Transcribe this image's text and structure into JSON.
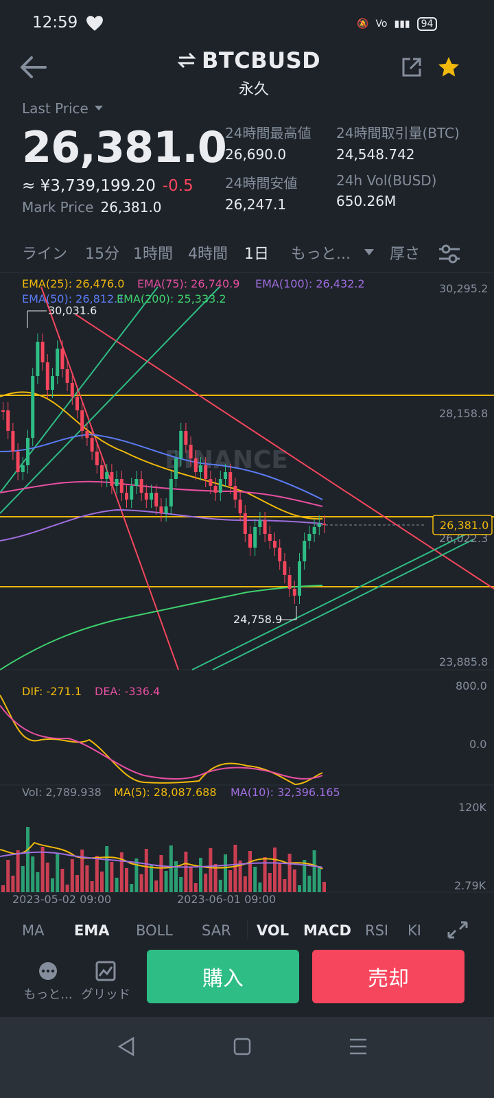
{
  "status": {
    "time": "12:59",
    "battery": "94"
  },
  "header": {
    "pair": "BTCBUSD",
    "contract": "永久"
  },
  "ticker": {
    "last_price_label": "Last Price",
    "last_price": "26,381.0",
    "jpy": "≈ ¥3,739,199.20",
    "change": "-0.5",
    "mark_label": "Mark Price",
    "mark_value": "26,381.0",
    "high_label": "24時間最高値",
    "high": "26,690.0",
    "low_label": "24時間安値",
    "low": "26,247.1",
    "vol_btc_label": "24時間取引量(BTC)",
    "vol_btc": "24,548.742",
    "vol_busd_label": "24h Vol(BUSD)",
    "vol_busd": "650.26M"
  },
  "timeframes": [
    "ライン",
    "15分",
    "1時間",
    "4時間",
    "1日",
    "もっと...",
    "厚さ"
  ],
  "chart": {
    "ema25": "EMA(25): 26,476.0",
    "ema75": "EMA(75): 26,740.9",
    "ema100": "EMA(100): 26,432.2",
    "ema50": "EMA(50): 26,812.1",
    "ema200": "EMA(200): 25,333.2",
    "axis_top": "30,295.2",
    "axis_mid": "28,158.8",
    "axis_cur": "26,381.0",
    "axis_lowmid": "26,022.3",
    "axis_bottom": "23,885.8",
    "hi_label": "30,031.6",
    "lo_label": "24,758.9",
    "watermark": "BINANCE",
    "dif": "DIF: -271.1",
    "dea": "DEA: -336.4",
    "macd_top": "800.0",
    "macd_zero": "0.0",
    "vol": "Vol: 2,789.938",
    "ma5": "MA(5): 28,087.688",
    "ma10": "MA(10): 32,396.165",
    "vol_top": "120K",
    "vol_bottom": "2.79K",
    "date1": "2023-05-02 09:00",
    "date2": "2023-06-01 09:00",
    "colors": {
      "up": "#2ebd85",
      "down": "#f6465d",
      "hline": "#f0b90b"
    }
  },
  "indicators": [
    "MA",
    "EMA",
    "BOLL",
    "SAR",
    "VOL",
    "MACD",
    "RSI",
    "KI"
  ],
  "bottom": {
    "more": "もっと...",
    "grid": "グリッド",
    "buy": "購入",
    "sell": "売却"
  }
}
